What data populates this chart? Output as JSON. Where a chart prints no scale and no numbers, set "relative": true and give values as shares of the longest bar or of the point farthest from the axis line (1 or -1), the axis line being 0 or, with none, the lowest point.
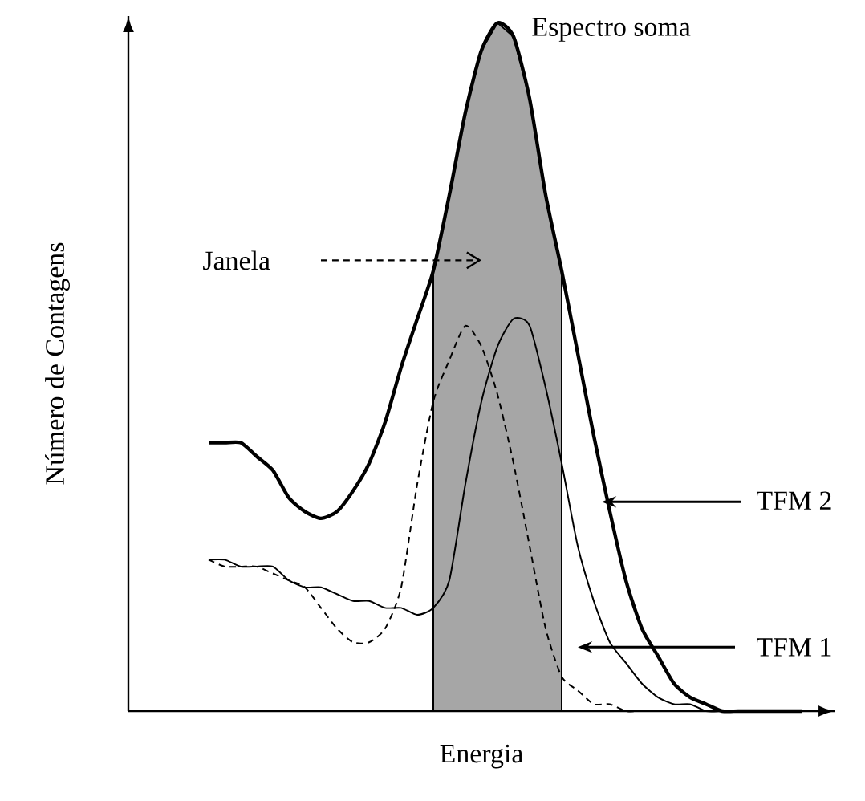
{
  "chart_data": {
    "type": "line",
    "relative": true,
    "xlabel": "Energia",
    "ylabel": "Número de Contagens",
    "legend": "right",
    "marker": "none",
    "categories": [
      null,
      null,
      null,
      null,
      null,
      null,
      null,
      null,
      null,
      null,
      null,
      null,
      null,
      null,
      null,
      null,
      null,
      null,
      null,
      null,
      null,
      null,
      null,
      null,
      null,
      null,
      null,
      null,
      null,
      null,
      null,
      null,
      null,
      null,
      null,
      null,
      null,
      null
    ],
    "series": [
      {
        "type": "area",
        "color": "#a6a6a6",
        "values": [
          null,
          null,
          null,
          null,
          null,
          null,
          null,
          null,
          null,
          null,
          null,
          null,
          null,
          null,
          0.64,
          0.75,
          0.87,
          0.96,
          1.0,
          0.98,
          0.89,
          0.75,
          0.64,
          null,
          null,
          null,
          null,
          null,
          null,
          null,
          null,
          null,
          null,
          null,
          null,
          null,
          null,
          null
        ]
      },
      {
        "name": "Espectro soma",
        "color": "#000000",
        "line_style": "solid",
        "values": [
          0.39,
          0.39,
          0.39,
          0.37,
          0.35,
          0.31,
          0.29,
          0.28,
          0.29,
          0.32,
          0.36,
          0.42,
          0.5,
          0.57,
          0.64,
          0.75,
          0.87,
          0.96,
          1.0,
          0.98,
          0.89,
          0.75,
          0.64,
          0.52,
          0.4,
          0.29,
          0.19,
          0.12,
          0.08,
          0.04,
          0.02,
          0.01,
          0,
          0,
          0,
          0,
          0,
          0
        ]
      },
      {
        "name": "TFM 2",
        "color": "#000000",
        "line_style": "solid",
        "values": [
          0.22,
          0.22,
          0.21,
          0.21,
          0.21,
          0.19,
          0.18,
          0.18,
          0.17,
          0.16,
          0.16,
          0.15,
          0.15,
          0.14,
          0.15,
          0.19,
          0.33,
          0.45,
          0.53,
          0.57,
          0.56,
          0.47,
          0.36,
          0.24,
          0.16,
          0.1,
          0.07,
          0.04,
          0.02,
          0.01,
          0.01,
          0,
          0,
          0,
          0,
          0,
          0,
          0
        ]
      },
      {
        "name": "TFM 1",
        "color": "#000000",
        "line_style": "dashed",
        "values": [
          0.22,
          0.21,
          0.21,
          0.21,
          0.2,
          0.19,
          0.18,
          0.15,
          0.12,
          0.1,
          0.1,
          0.12,
          0.18,
          0.33,
          0.45,
          0.51,
          0.56,
          0.53,
          0.46,
          0.36,
          0.24,
          0.12,
          0.05,
          0.03,
          0.01,
          0.01,
          0,
          0,
          0,
          0,
          0,
          0,
          0,
          0,
          0,
          0,
          0,
          0
        ]
      }
    ],
    "annotations": [
      "Janela"
    ]
  }
}
